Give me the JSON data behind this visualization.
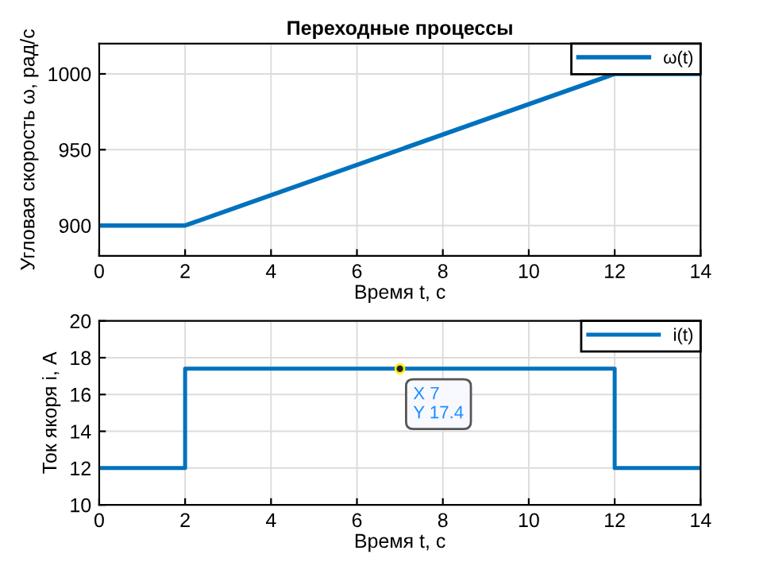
{
  "chart_data": [
    {
      "type": "line",
      "title": "Переходные процессы",
      "xlabel": "Время t, с",
      "ylabel": "Угловая скорость ω, рад/с",
      "x": [
        0,
        2,
        12,
        14
      ],
      "series": [
        {
          "name": "ω(t)",
          "color": "#0072bd",
          "values": [
            900,
            900,
            1000,
            1000
          ]
        }
      ],
      "xlim": [
        0,
        14
      ],
      "xticks": [
        0,
        2,
        4,
        6,
        8,
        10,
        12,
        14
      ],
      "ylim": [
        880,
        1020
      ],
      "yticks": [
        900,
        950,
        1000
      ],
      "grid": true,
      "legend": "top right"
    },
    {
      "type": "line",
      "xlabel": "Время t, с",
      "ylabel": "Ток якоря i, А",
      "x": [
        0,
        2,
        2,
        12,
        12,
        14
      ],
      "series": [
        {
          "name": "i(t)",
          "color": "#0072bd",
          "values": [
            12,
            12,
            17.4,
            17.4,
            12,
            12
          ]
        }
      ],
      "xlim": [
        0,
        14
      ],
      "xticks": [
        0,
        2,
        4,
        6,
        8,
        10,
        12,
        14
      ],
      "ylim": [
        10,
        20
      ],
      "yticks": [
        10,
        12,
        14,
        16,
        18,
        20
      ],
      "grid": true,
      "legend": "top right",
      "annotations": [
        {
          "text": "X 7\nY 17.4",
          "x": 7,
          "y": 17.4
        }
      ]
    }
  ]
}
